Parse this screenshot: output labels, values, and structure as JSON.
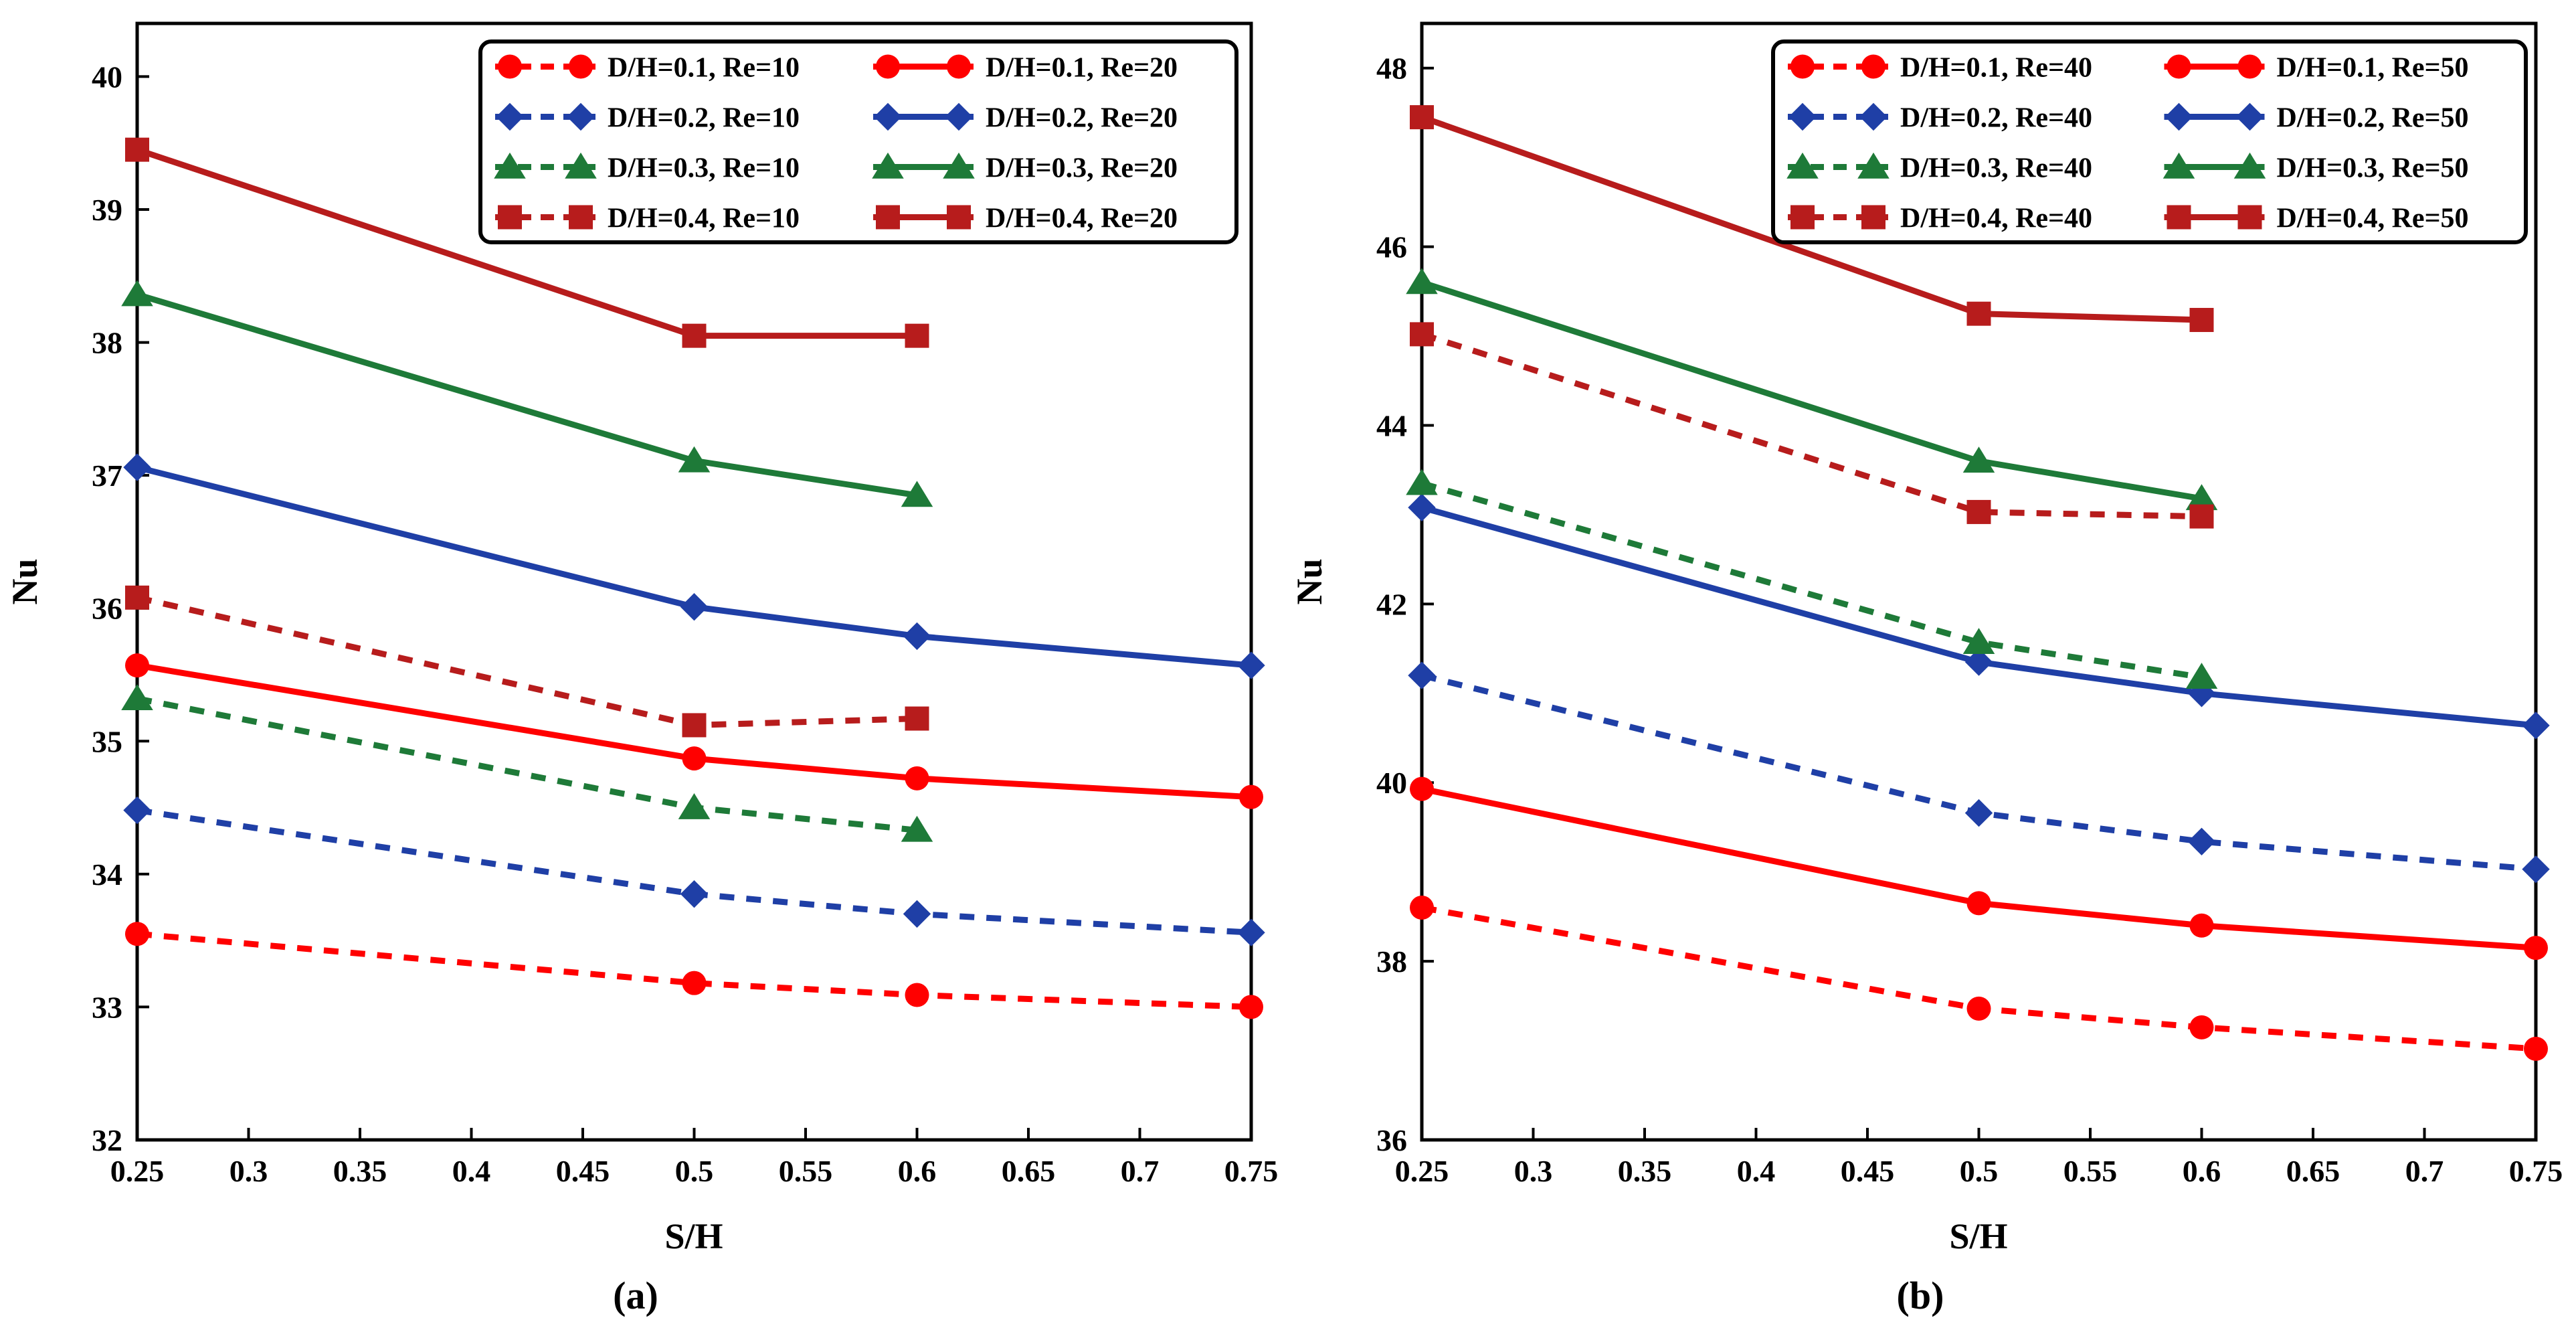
{
  "chart_data": [
    {
      "type": "line",
      "panel_label": "(a)",
      "xlabel": "S/H",
      "ylabel": "Nu",
      "xlim": [
        0.25,
        0.75
      ],
      "ylim": [
        32,
        40.4
      ],
      "xticks": [
        0.25,
        0.3,
        0.35,
        0.4,
        0.45,
        0.5,
        0.55,
        0.6,
        0.65,
        0.7,
        0.75
      ],
      "xtick_labels": [
        "0.25",
        "0.3",
        "0.35",
        "0.4",
        "0.45",
        "0.5",
        "0.55",
        "0.6",
        "0.65",
        "0.7",
        "0.75"
      ],
      "yticks": [
        32,
        33,
        34,
        35,
        36,
        37,
        38,
        39,
        40
      ],
      "ytick_labels": [
        "32",
        "33",
        "34",
        "35",
        "36",
        "37",
        "38",
        "39",
        "40"
      ],
      "grid": false,
      "legend_position": "top-right",
      "legend_columns": 2,
      "series": [
        {
          "name": "D/H=0.1, Re=10",
          "color": "#ff0000",
          "dash": "dashed",
          "marker": "circle",
          "x": [
            0.25,
            0.5,
            0.6,
            0.75
          ],
          "y": [
            33.55,
            33.18,
            33.09,
            33.0
          ]
        },
        {
          "name": "D/H=0.1, Re=20",
          "color": "#ff0000",
          "dash": "solid",
          "marker": "circle",
          "x": [
            0.25,
            0.5,
            0.6,
            0.75
          ],
          "y": [
            35.57,
            34.87,
            34.72,
            34.58
          ]
        },
        {
          "name": "D/H=0.2, Re=10",
          "color": "#1f3fa6",
          "dash": "dashed",
          "marker": "diamond",
          "x": [
            0.25,
            0.5,
            0.6,
            0.75
          ],
          "y": [
            34.48,
            33.85,
            33.7,
            33.56
          ]
        },
        {
          "name": "D/H=0.2, Re=20",
          "color": "#1f3fa6",
          "dash": "solid",
          "marker": "diamond",
          "x": [
            0.25,
            0.5,
            0.6,
            0.75
          ],
          "y": [
            37.06,
            36.01,
            35.79,
            35.57
          ]
        },
        {
          "name": "D/H=0.3, Re=10",
          "color": "#1e7a38",
          "dash": "dashed",
          "marker": "triangle",
          "x": [
            0.25,
            0.5,
            0.6
          ],
          "y": [
            35.32,
            34.5,
            34.33
          ]
        },
        {
          "name": "D/H=0.3, Re=20",
          "color": "#1e7a38",
          "dash": "solid",
          "marker": "triangle",
          "x": [
            0.25,
            0.5,
            0.6
          ],
          "y": [
            38.36,
            37.11,
            36.85
          ]
        },
        {
          "name": "D/H=0.4, Re=10",
          "color": "#b71c1c",
          "dash": "dashed",
          "marker": "square",
          "x": [
            0.25,
            0.5,
            0.6
          ],
          "y": [
            36.08,
            35.12,
            35.17
          ]
        },
        {
          "name": "D/H=0.4, Re=20",
          "color": "#b71c1c",
          "dash": "solid",
          "marker": "square",
          "x": [
            0.25,
            0.5,
            0.6
          ],
          "y": [
            39.45,
            38.05,
            38.05
          ]
        }
      ]
    },
    {
      "type": "line",
      "panel_label": "(b)",
      "xlabel": "S/H",
      "ylabel": "Nu",
      "xlim": [
        0.25,
        0.75
      ],
      "ylim": [
        36,
        48.5
      ],
      "xticks": [
        0.25,
        0.3,
        0.35,
        0.4,
        0.45,
        0.5,
        0.55,
        0.6,
        0.65,
        0.7,
        0.75
      ],
      "xtick_labels": [
        "0.25",
        "0.3",
        "0.35",
        "0.4",
        "0.45",
        "0.5",
        "0.55",
        "0.6",
        "0.65",
        "0.7",
        "0.75"
      ],
      "yticks": [
        36,
        38,
        40,
        42,
        44,
        46,
        48
      ],
      "ytick_labels": [
        "36",
        "38",
        "40",
        "42",
        "44",
        "46",
        "48"
      ],
      "grid": false,
      "legend_position": "top-right",
      "legend_columns": 2,
      "series": [
        {
          "name": "D/H=0.1, Re=40",
          "color": "#ff0000",
          "dash": "dashed",
          "marker": "circle",
          "x": [
            0.25,
            0.5,
            0.6,
            0.75
          ],
          "y": [
            38.6,
            37.47,
            37.26,
            37.02
          ]
        },
        {
          "name": "D/H=0.1, Re=50",
          "color": "#ff0000",
          "dash": "solid",
          "marker": "circle",
          "x": [
            0.25,
            0.5,
            0.6,
            0.75
          ],
          "y": [
            39.93,
            38.65,
            38.4,
            38.15
          ]
        },
        {
          "name": "D/H=0.2, Re=40",
          "color": "#1f3fa6",
          "dash": "dashed",
          "marker": "diamond",
          "x": [
            0.25,
            0.5,
            0.6,
            0.75
          ],
          "y": [
            41.2,
            39.66,
            39.34,
            39.03
          ]
        },
        {
          "name": "D/H=0.2, Re=50",
          "color": "#1f3fa6",
          "dash": "solid",
          "marker": "diamond",
          "x": [
            0.25,
            0.5,
            0.6,
            0.75
          ],
          "y": [
            43.08,
            41.35,
            41.0,
            40.64
          ]
        },
        {
          "name": "D/H=0.3, Re=40",
          "color": "#1e7a38",
          "dash": "dashed",
          "marker": "triangle",
          "x": [
            0.25,
            0.5,
            0.6
          ],
          "y": [
            43.35,
            41.57,
            41.18
          ]
        },
        {
          "name": "D/H=0.3, Re=50",
          "color": "#1e7a38",
          "dash": "solid",
          "marker": "triangle",
          "x": [
            0.25,
            0.5,
            0.6
          ],
          "y": [
            45.6,
            43.6,
            43.18
          ]
        },
        {
          "name": "D/H=0.4, Re=40",
          "color": "#b71c1c",
          "dash": "dashed",
          "marker": "square",
          "x": [
            0.25,
            0.5,
            0.6
          ],
          "y": [
            45.02,
            43.03,
            42.98
          ]
        },
        {
          "name": "D/H=0.4, Re=50",
          "color": "#b71c1c",
          "dash": "solid",
          "marker": "square",
          "x": [
            0.25,
            0.5,
            0.6
          ],
          "y": [
            47.45,
            45.25,
            45.18
          ]
        }
      ]
    }
  ]
}
